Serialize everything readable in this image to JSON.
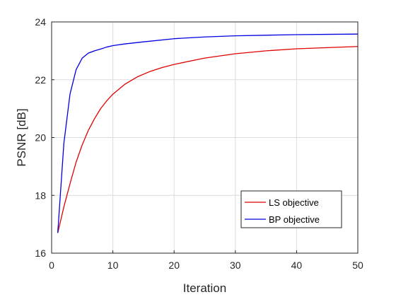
{
  "chart_data": {
    "type": "line",
    "title": "",
    "xlabel": "Iteration",
    "ylabel": "PSNR [dB]",
    "xlim": [
      0,
      50
    ],
    "ylim": [
      16,
      24
    ],
    "xticks": [
      0,
      10,
      20,
      30,
      40,
      50
    ],
    "yticks": [
      16,
      18,
      20,
      22,
      24
    ],
    "grid": true,
    "legend_position": "bottom-right",
    "series": [
      {
        "name": "LS objective",
        "color": "#e00000",
        "x": [
          1,
          2,
          3,
          4,
          5,
          6,
          7,
          8,
          9,
          10,
          12,
          14,
          16,
          18,
          20,
          25,
          30,
          35,
          40,
          45,
          50
        ],
        "y": [
          16.7,
          17.6,
          18.4,
          19.15,
          19.75,
          20.25,
          20.65,
          21.0,
          21.27,
          21.5,
          21.85,
          22.1,
          22.28,
          22.42,
          22.53,
          22.75,
          22.9,
          23.0,
          23.07,
          23.11,
          23.15
        ]
      },
      {
        "name": "BP objective",
        "color": "#0000e0",
        "x": [
          1,
          2,
          3,
          4,
          5,
          6,
          7,
          8,
          9,
          10,
          12,
          15,
          20,
          25,
          30,
          35,
          40,
          45,
          50
        ],
        "y": [
          16.7,
          19.8,
          21.5,
          22.35,
          22.75,
          22.92,
          23.0,
          23.06,
          23.13,
          23.18,
          23.24,
          23.31,
          23.42,
          23.48,
          23.52,
          23.54,
          23.56,
          23.57,
          23.58
        ]
      }
    ]
  }
}
